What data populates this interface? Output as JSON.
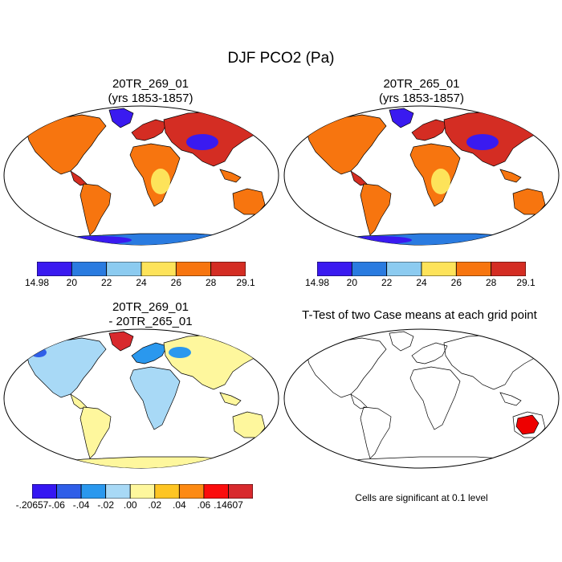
{
  "main_title": "DJF PCO2 (Pa)",
  "panels": [
    {
      "id": "p1",
      "title_line1": "20TR_269_01",
      "title_line2": "(yrs 1853-1857)"
    },
    {
      "id": "p2",
      "title_line1": "20TR_265_01",
      "title_line2": "(yrs 1853-1857)"
    },
    {
      "id": "p3",
      "title_line1": "20TR_269_01",
      "title_line2": "- 20TR_265_01"
    },
    {
      "id": "p4",
      "title_line1": "T-Test of two Case means at each grid point",
      "title_line2": ""
    }
  ],
  "colorbar_top": {
    "colors": [
      "#3a1af0",
      "#2a7be0",
      "#8ccbf0",
      "#fde35a",
      "#f7750f",
      "#d42d23"
    ],
    "labels": [
      "14.98",
      "20",
      "22",
      "24",
      "26",
      "28",
      "29.1"
    ]
  },
  "colorbar_diff": {
    "colors": [
      "#3517f2",
      "#2f5ee8",
      "#2a98ee",
      "#a8d9f6",
      "#fef79d",
      "#fec523",
      "#fd8a13",
      "#fb0d0d",
      "#d8292d"
    ],
    "labels": [
      "-.20657",
      "-.06",
      "-.04",
      "-.02",
      ".00",
      ".02",
      ".04",
      ".06",
      ".14607"
    ]
  },
  "significance_note": "Cells are significant at 0.1 level",
  "colors": {
    "ocean": "#ffffff",
    "significant": "#ee0000"
  }
}
